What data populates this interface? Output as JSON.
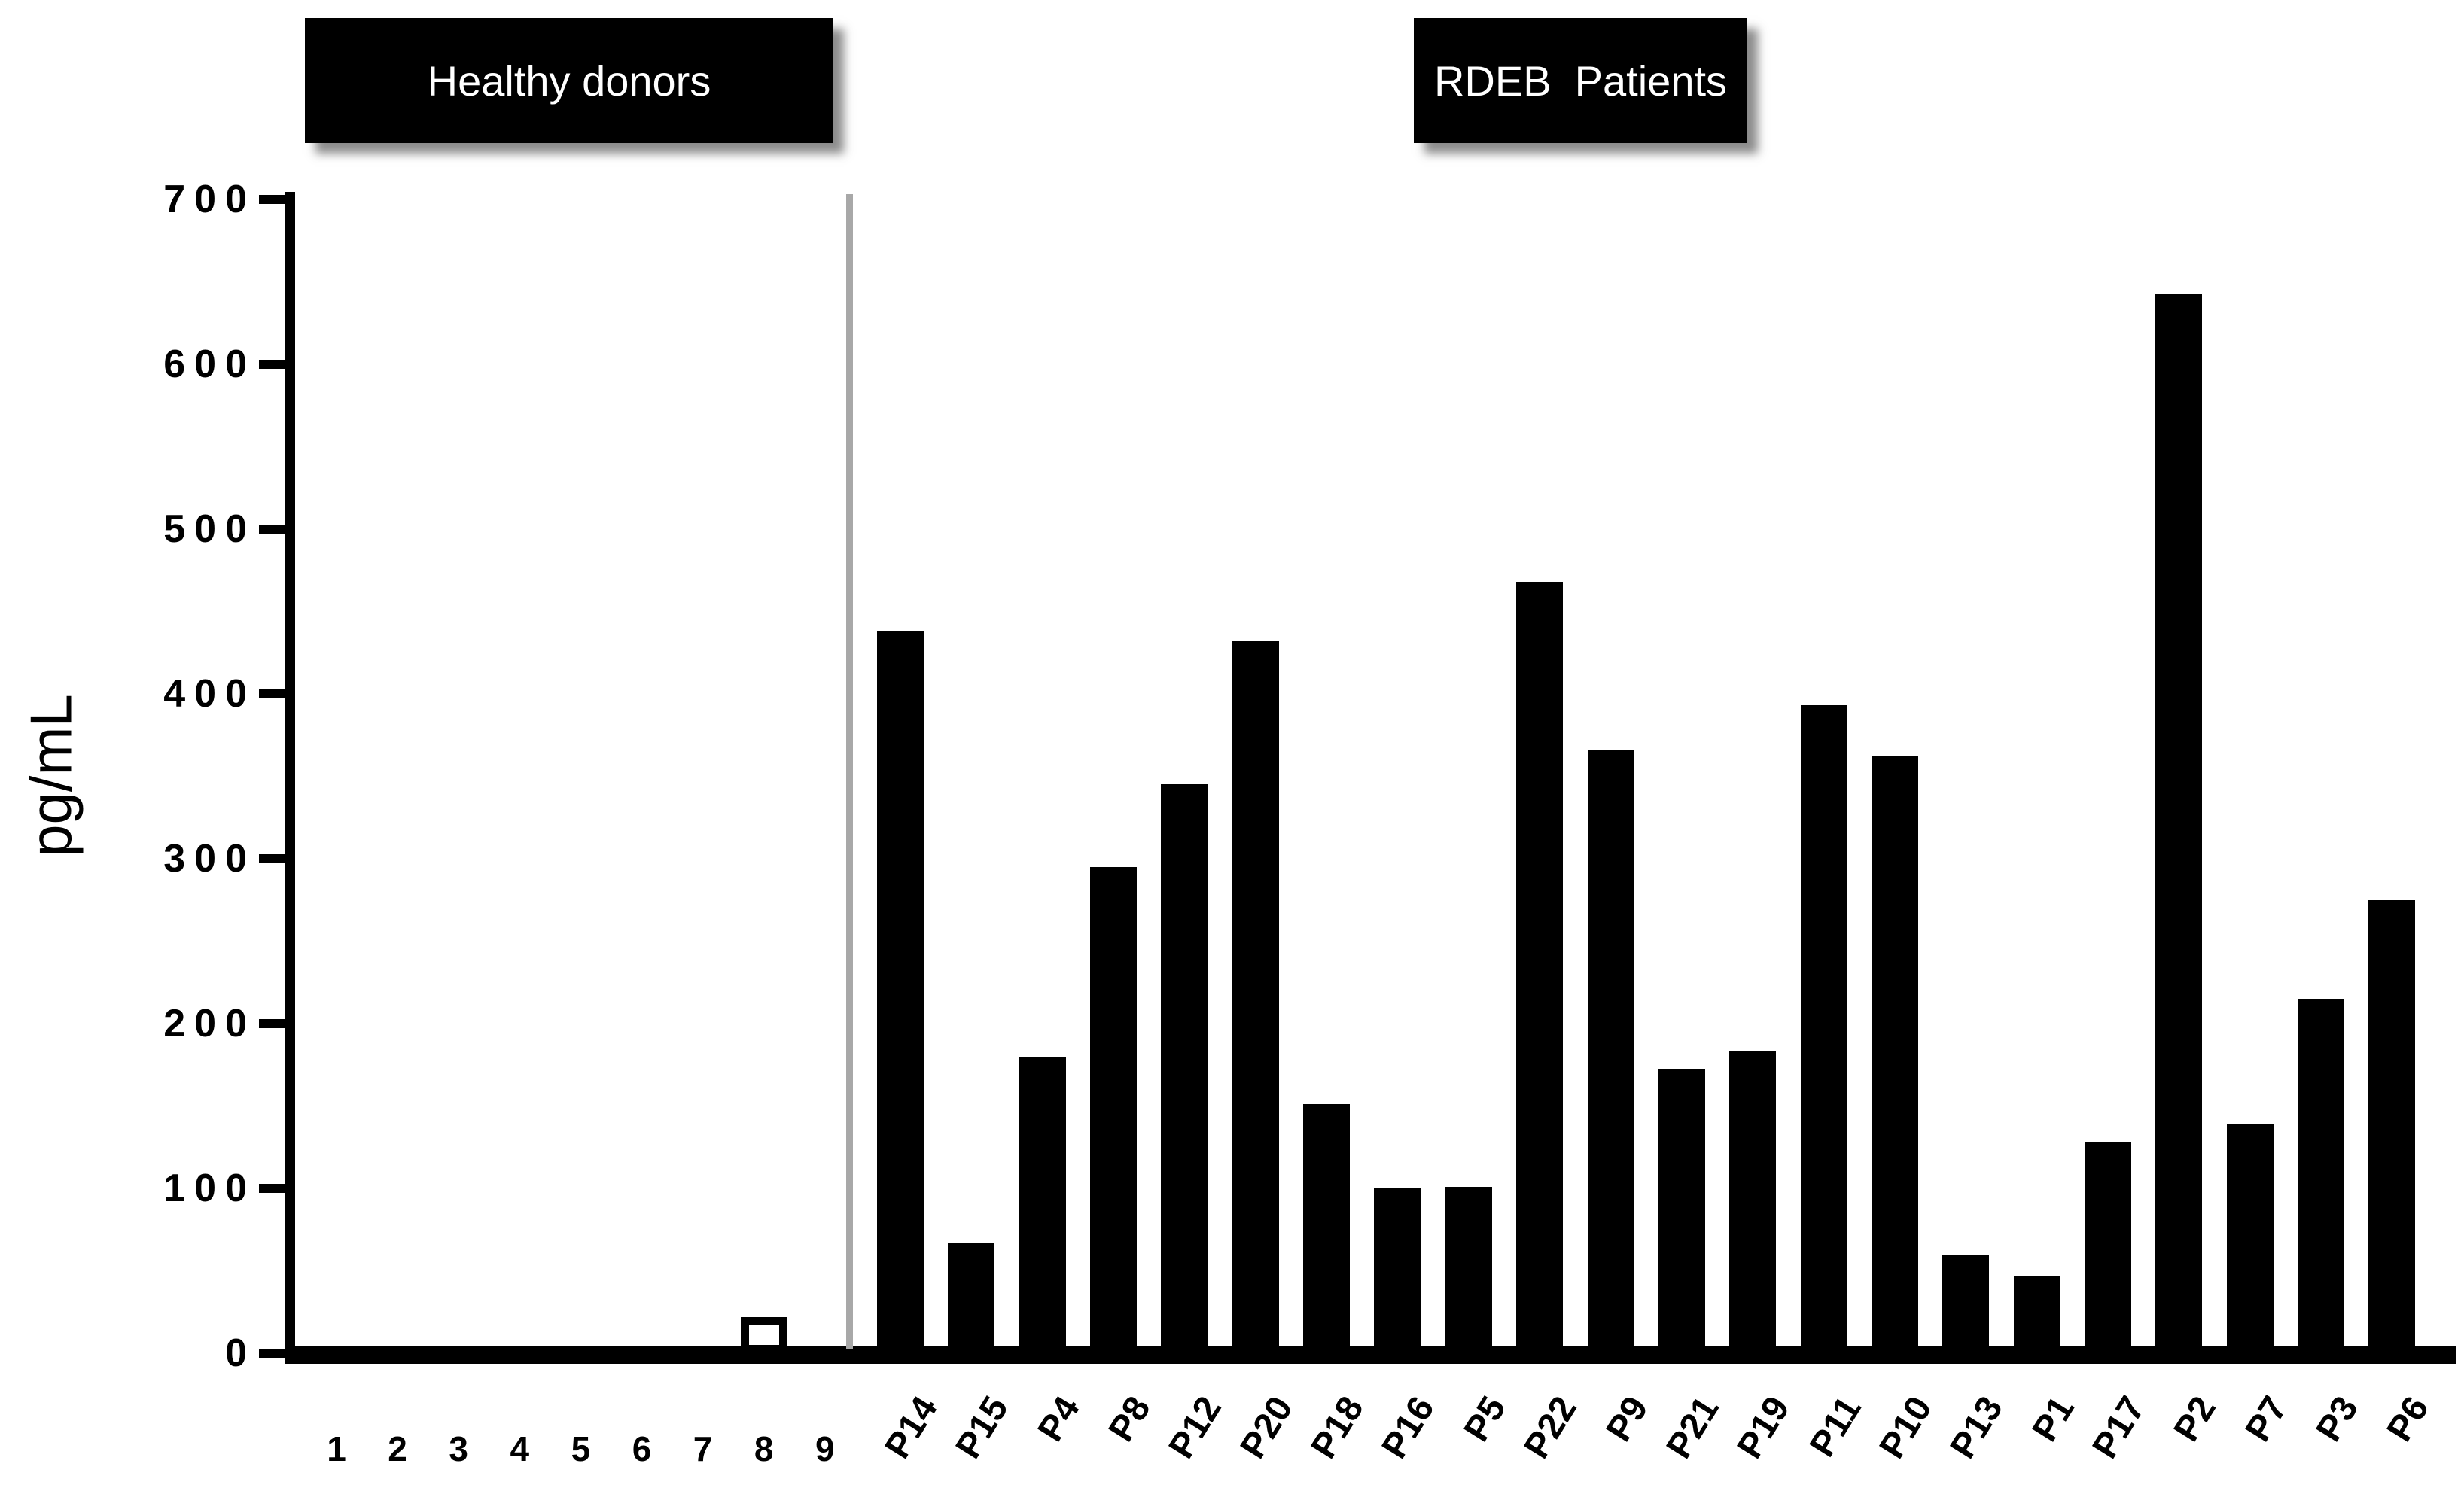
{
  "header": {
    "healthy_label": "Healthy donors",
    "rdeb_label": "RDEB  Patients"
  },
  "chart_data": {
    "type": "bar",
    "title": "",
    "ylabel": "pg/mL",
    "xlabel": "",
    "ylim": [
      0,
      700
    ],
    "yticks": [
      0,
      100,
      200,
      300,
      400,
      500,
      600,
      700
    ],
    "grid": false,
    "legend_position": "none",
    "groups": [
      {
        "name": "Healthy donors",
        "bar_style": "outline-white",
        "categories": [
          "1",
          "2",
          "3",
          "4",
          "5",
          "6",
          "7",
          "8",
          "9"
        ],
        "values": [
          0,
          0,
          0,
          0,
          0,
          0,
          0,
          22,
          0
        ]
      },
      {
        "name": "RDEB Patients",
        "bar_style": "solid-black",
        "categories": [
          "P14",
          "P15",
          "P4",
          "P8",
          "P12",
          "P20",
          "P18",
          "P16",
          "P5",
          "P22",
          "P9",
          "P21",
          "P19",
          "P11",
          "P10",
          "P13",
          "P1",
          "P17",
          "P2",
          "P7",
          "P3",
          "P6"
        ],
        "values": [
          438,
          67,
          180,
          295,
          345,
          432,
          151,
          100,
          101,
          468,
          366,
          172,
          183,
          393,
          362,
          60,
          47,
          128,
          643,
          139,
          215,
          275
        ]
      }
    ],
    "colors": {
      "bar": "#000000",
      "axis": "#000000",
      "divider": "#a8a8a8",
      "label_box_bg": "#000000",
      "label_box_text": "#ffffff"
    }
  }
}
